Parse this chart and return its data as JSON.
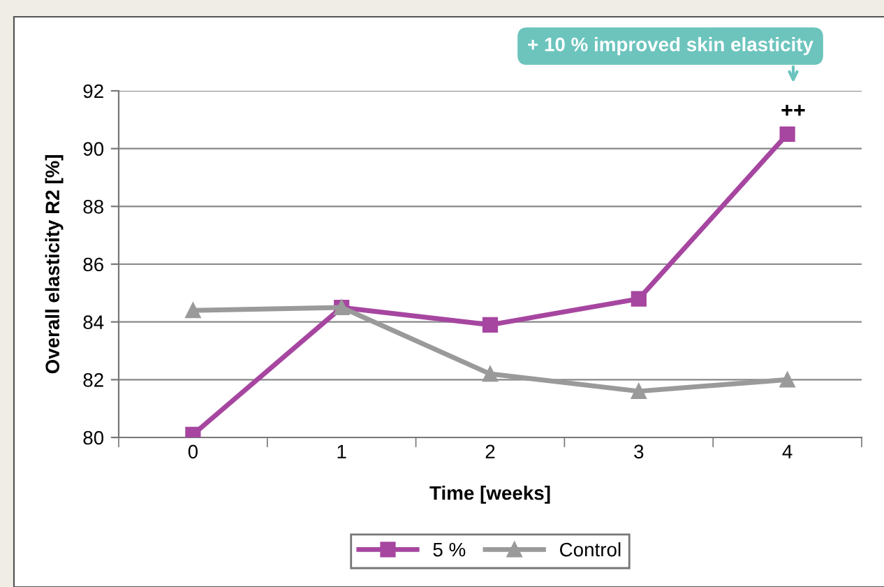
{
  "chart_data": {
    "type": "line",
    "xlabel": "Time [weeks]",
    "ylabel": "Overall elasticity R2 [%]",
    "categories": [
      "0",
      "1",
      "2",
      "3",
      "4"
    ],
    "series": [
      {
        "name": "5 %",
        "color": "#a646a0",
        "marker": "square",
        "values": [
          80.1,
          84.5,
          83.9,
          84.8,
          90.5
        ]
      },
      {
        "name": "Control",
        "color": "#9a9a9a",
        "marker": "triangle",
        "values": [
          84.4,
          84.5,
          82.2,
          81.6,
          82.0
        ]
      }
    ],
    "ylim": [
      80,
      92
    ],
    "yticks": [
      80,
      82,
      84,
      86,
      88,
      90,
      92
    ],
    "grid": "y",
    "legend": "bottom",
    "annotations": [
      "+ 10 % improved skin elasticity",
      "++"
    ]
  }
}
